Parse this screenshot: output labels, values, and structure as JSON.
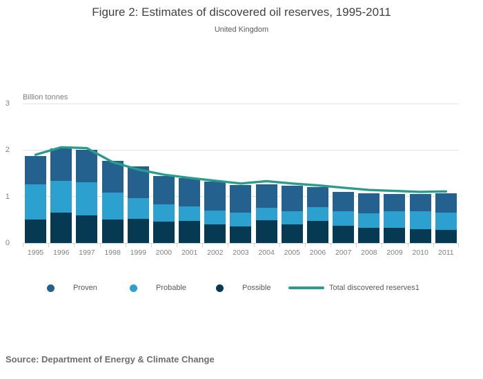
{
  "header": {
    "title": "Figure 2: Estimates of discovered oil reserves, 1995-2011",
    "subtitle": "United Kingdom"
  },
  "chart_data": {
    "type": "bar",
    "subtype": "stacked-columns-with-total-line",
    "title": "Figure 2: Estimates of discovered oil reserves, 1995-2011",
    "subtitle": "United Kingdom",
    "y_axis_title": "Billion tonnes",
    "ylim": [
      0,
      3
    ],
    "y_ticks": [
      0,
      1,
      2,
      3
    ],
    "grid": "horizontal",
    "legend_position": "bottom",
    "categories": [
      "1995",
      "1996",
      "1997",
      "1998",
      "1999",
      "2000",
      "2001",
      "2002",
      "2003",
      "2004",
      "2005",
      "2006",
      "2007",
      "2008",
      "2009",
      "2010",
      "2011"
    ],
    "series": [
      {
        "name": "Proven",
        "color": "#25618F",
        "values": [
          0.61,
          0.69,
          0.69,
          0.69,
          0.68,
          0.61,
          0.61,
          0.62,
          0.6,
          0.51,
          0.54,
          0.42,
          0.41,
          0.43,
          0.37,
          0.37,
          0.41
        ]
      },
      {
        "name": "Probable",
        "color": "#2CA1CF",
        "values": [
          0.76,
          0.69,
          0.71,
          0.57,
          0.45,
          0.37,
          0.31,
          0.3,
          0.29,
          0.27,
          0.29,
          0.31,
          0.32,
          0.31,
          0.37,
          0.39,
          0.38
        ]
      },
      {
        "name": "Possible",
        "color": "#053A52",
        "values": [
          0.5,
          0.65,
          0.6,
          0.51,
          0.52,
          0.46,
          0.48,
          0.4,
          0.36,
          0.49,
          0.4,
          0.47,
          0.37,
          0.33,
          0.32,
          0.3,
          0.28
        ]
      }
    ],
    "stack_order_bottom_to_top": [
      "Possible",
      "Probable",
      "Proven"
    ],
    "bar_totals": [
      1.87,
      2.03,
      2.0,
      1.77,
      1.65,
      1.44,
      1.4,
      1.32,
      1.25,
      1.27,
      1.23,
      1.2,
      1.1,
      1.07,
      1.06,
      1.06,
      1.07
    ],
    "line_series": {
      "name": "Total discovered reserves1",
      "color": "#2B9C8C",
      "values": [
        1.9,
        2.06,
        2.04,
        1.74,
        1.58,
        1.47,
        1.4,
        1.34,
        1.28,
        1.33,
        1.28,
        1.24,
        1.19,
        1.14,
        1.12,
        1.1,
        1.11
      ]
    }
  },
  "source": {
    "text": "Source: Department of Energy & Climate Change"
  }
}
